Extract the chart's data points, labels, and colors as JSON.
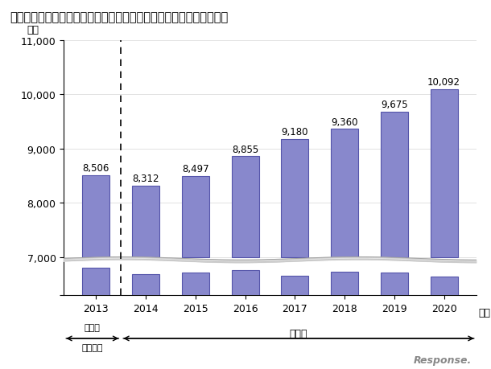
{
  "title": "国内におけるポイント・マイレージの年間最少発行額の推計と予測値",
  "ylabel": "億円",
  "xlabel": "年度",
  "years": [
    2013,
    2014,
    2015,
    2016,
    2017,
    2018,
    2019,
    2020
  ],
  "values": [
    8506,
    8312,
    8497,
    8855,
    9180,
    9360,
    9675,
    10092
  ],
  "bottom_values": [
    500,
    380,
    410,
    460,
    360,
    430,
    410,
    340
  ],
  "bar_color": "#8888cc",
  "bar_edgecolor": "#5555aa",
  "ytick_reals": [
    0,
    7000,
    8000,
    9000,
    10000,
    11000
  ],
  "ytick_labels": [
    "",
    "7,000",
    "8,000",
    "9,000",
    "10,000",
    "11,000"
  ],
  "background_color": "#ffffff",
  "actual_label1": "実績値",
  "actual_label2": "（推計）",
  "forecast_label": "予測値",
  "logo_text": "Response."
}
